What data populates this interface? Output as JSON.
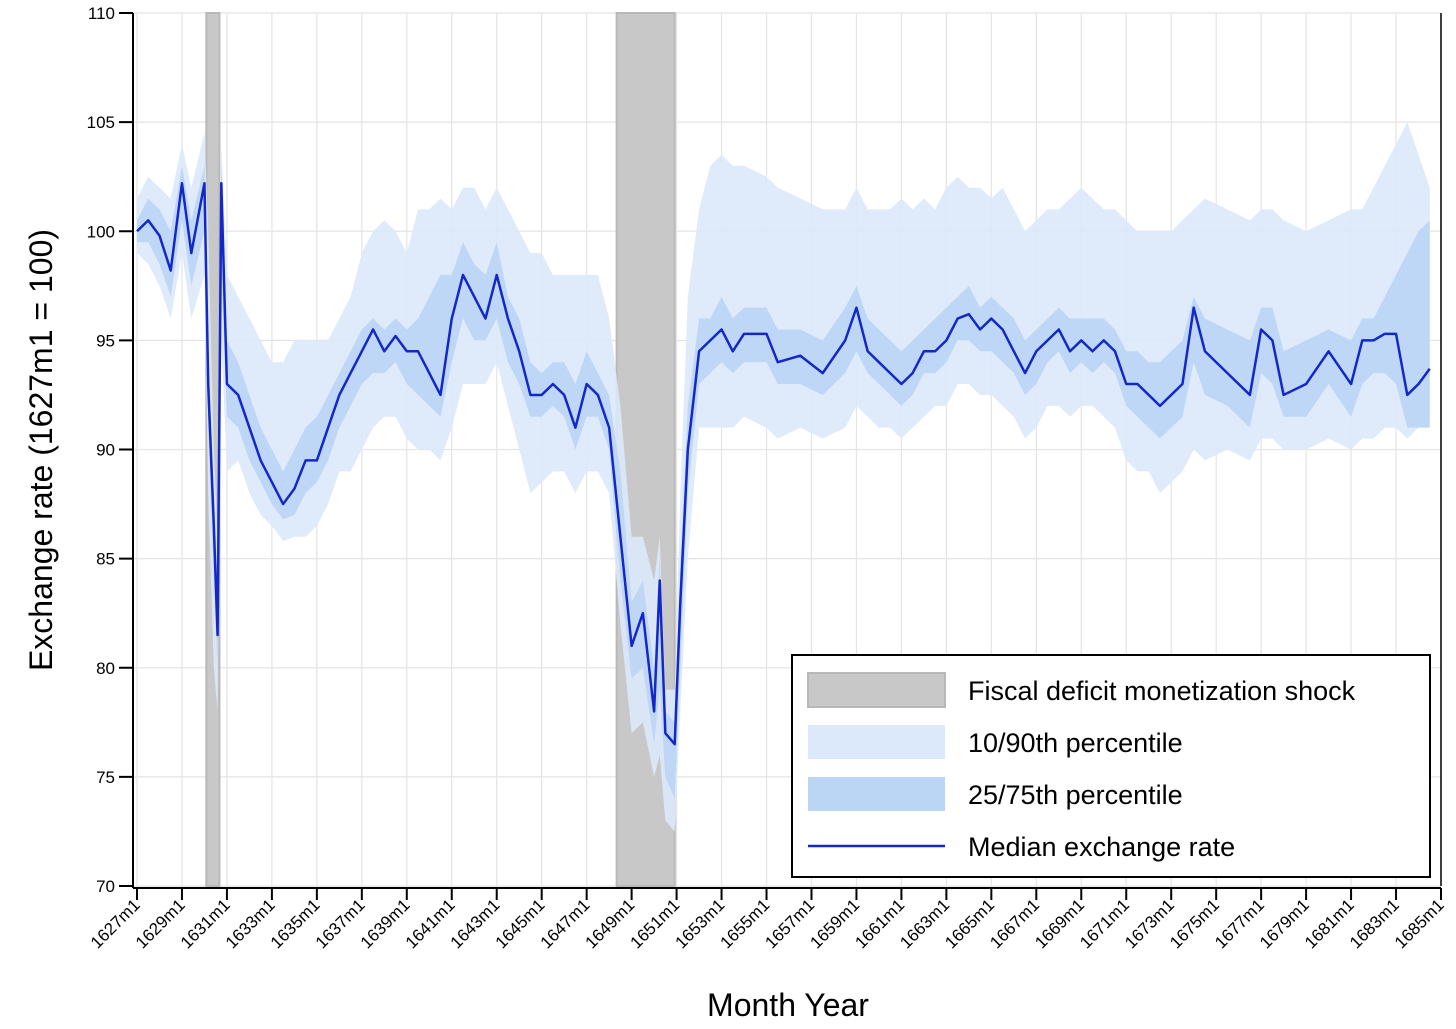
{
  "chart_data": {
    "type": "line",
    "xlabel": "Month Year",
    "ylabel": "Exchange rate (1627m1 = 100)",
    "ylim": [
      70,
      110
    ],
    "yticks": [
      70,
      75,
      80,
      85,
      90,
      95,
      100,
      105,
      110
    ],
    "xticks": [
      "1627m1",
      "1629m1",
      "1631m1",
      "1633m1",
      "1635m1",
      "1637m1",
      "1639m1",
      "1641m1",
      "1643m1",
      "1645m1",
      "1647m1",
      "1649m1",
      "1651m1",
      "1653m1",
      "1655m1",
      "1657m1",
      "1659m1",
      "1661m1",
      "1663m1",
      "1665m1",
      "1667m1",
      "1669m1",
      "1671m1",
      "1673m1",
      "1675m1",
      "1677m1",
      "1679m1",
      "1681m1",
      "1683m1",
      "1685m1"
    ],
    "grid": true,
    "legend": "lower right",
    "shaded_regions": {
      "name": "Fiscal deficit monetization shock",
      "color": "#c8c8c8",
      "ranges": [
        [
          "1630m2",
          "1630m9"
        ],
        [
          "1648m5",
          "1650m12"
        ]
      ]
    },
    "x": [
      "1627m1",
      "1627m7",
      "1628m1",
      "1628m7",
      "1629m1",
      "1629m6",
      "1630m1",
      "1630m3",
      "1630m6",
      "1630m8",
      "1630m10",
      "1631m1",
      "1631m7",
      "1632m1",
      "1632m7",
      "1633m1",
      "1633m7",
      "1634m1",
      "1634m7",
      "1635m1",
      "1635m7",
      "1636m1",
      "1636m7",
      "1637m1",
      "1637m7",
      "1638m1",
      "1638m7",
      "1639m1",
      "1639m7",
      "1640m1",
      "1640m7",
      "1641m1",
      "1641m7",
      "1642m1",
      "1642m7",
      "1643m1",
      "1643m7",
      "1644m1",
      "1644m7",
      "1645m1",
      "1645m7",
      "1646m1",
      "1646m7",
      "1647m1",
      "1647m7",
      "1648m1",
      "1648m7",
      "1649m1",
      "1649m7",
      "1650m1",
      "1650m4",
      "1650m7",
      "1650m12",
      "1651m3",
      "1651m7",
      "1652m1",
      "1652m7",
      "1653m1",
      "1653m7",
      "1654m1",
      "1655m1",
      "1655m7",
      "1656m7",
      "1657m7",
      "1658m7",
      "1659m1",
      "1659m7",
      "1660m1",
      "1660m7",
      "1661m1",
      "1661m7",
      "1662m1",
      "1662m7",
      "1663m1",
      "1663m7",
      "1664m1",
      "1664m7",
      "1665m1",
      "1665m7",
      "1666m1",
      "1666m7",
      "1667m1",
      "1667m7",
      "1668m1",
      "1668m7",
      "1669m1",
      "1669m7",
      "1670m1",
      "1670m7",
      "1671m1",
      "1671m7",
      "1672m1",
      "1672m7",
      "1673m1",
      "1673m7",
      "1674m1",
      "1674m7",
      "1675m7",
      "1676m7",
      "1677m1",
      "1677m7",
      "1678m1",
      "1679m1",
      "1680m1",
      "1681m1",
      "1681m7",
      "1682m1",
      "1682m7",
      "1683m1",
      "1683m7",
      "1684m1",
      "1684m7"
    ],
    "bands": [
      {
        "name": "10/90th percentile",
        "color": "#dce9fb",
        "lower": [
          99,
          98.5,
          97.5,
          96,
          99,
          96,
          98,
          88,
          80,
          78,
          95,
          89,
          89.5,
          88,
          87,
          86.5,
          85.8,
          86,
          86,
          86.5,
          87.5,
          89,
          89,
          90,
          91,
          91.5,
          91.5,
          90.5,
          90,
          90,
          89.5,
          91,
          93,
          93,
          93,
          94,
          92,
          90,
          88,
          88.5,
          89,
          89,
          88,
          89,
          89,
          88,
          82,
          77,
          77.5,
          75,
          76,
          73,
          72.5,
          78,
          85,
          91,
          91,
          91,
          91,
          91.5,
          91,
          90.5,
          91,
          90.5,
          91,
          92,
          91.5,
          91,
          91,
          90.5,
          91,
          91.5,
          92,
          92,
          93,
          93,
          92.5,
          92.5,
          92,
          91.5,
          90.5,
          91,
          92,
          92,
          91.5,
          92,
          92,
          91.5,
          91,
          89.5,
          89,
          89,
          88,
          88.5,
          89,
          90,
          89.5,
          90,
          89.5,
          90.5,
          90.5,
          90,
          90,
          90.5,
          90,
          90.5,
          90.5,
          91,
          91,
          90.5,
          91,
          91
        ],
        "upper": [
          101.5,
          102.5,
          102,
          101.5,
          104,
          102,
          104.5,
          100,
          90,
          86,
          104,
          98,
          97,
          96,
          95,
          94,
          94,
          95,
          95,
          95,
          95,
          96,
          97,
          99,
          100,
          100.5,
          100,
          99,
          101,
          101,
          101.5,
          101,
          102,
          102,
          101,
          102,
          101,
          100,
          99,
          99,
          98,
          98,
          98,
          98,
          98,
          96,
          92,
          86,
          86,
          84,
          86,
          79,
          79,
          88,
          97,
          101,
          103,
          103.5,
          103,
          103,
          102.5,
          102,
          101.5,
          101,
          101,
          102,
          101,
          101,
          101,
          101.5,
          101,
          101.5,
          101,
          102,
          102.5,
          102,
          102,
          101.5,
          102,
          101,
          100,
          100.5,
          101,
          101,
          101.5,
          102,
          101.5,
          101,
          101,
          100.5,
          100,
          100,
          100,
          100,
          100.5,
          101,
          101.5,
          101,
          100.5,
          101,
          101,
          100.5,
          100,
          100.5,
          101,
          101,
          102,
          103,
          104,
          105,
          103.5,
          102
        ]
      },
      {
        "name": "25/75th percentile",
        "color": "#bbd5f5",
        "lower": [
          99.5,
          99.5,
          98.5,
          97,
          100.5,
          97.5,
          100,
          91,
          84,
          80,
          98,
          91.5,
          91,
          89.5,
          88.5,
          87.5,
          86.8,
          87,
          88,
          88.5,
          89.5,
          91,
          92,
          93,
          93.5,
          93.5,
          94,
          93,
          92.5,
          92,
          91.5,
          94,
          96,
          95,
          95,
          96,
          94,
          93,
          91.5,
          91.5,
          92,
          91.5,
          90,
          91.5,
          91.5,
          90,
          84,
          79.5,
          80,
          76.5,
          79,
          75,
          74,
          80,
          88,
          93,
          93.5,
          94,
          93.5,
          94,
          94,
          93,
          93,
          92.5,
          93.5,
          94.5,
          93.5,
          93,
          92.5,
          92,
          92.5,
          93.5,
          93.5,
          94,
          95,
          95,
          94.5,
          94.5,
          94,
          93.5,
          92.5,
          93,
          94,
          94.5,
          93.5,
          94,
          93.5,
          94,
          93.5,
          92,
          91.5,
          91,
          90.5,
          91,
          91.5,
          94,
          92.5,
          92,
          91,
          93.5,
          93,
          91.5,
          91.5,
          93,
          91.5,
          93,
          93.5,
          93.5,
          93,
          91,
          91,
          91
        ],
        "upper": [
          100.5,
          101.5,
          101,
          100,
          103,
          100.5,
          103,
          95,
          88,
          84,
          103,
          95,
          94,
          92.5,
          91,
          90,
          89,
          90,
          91,
          91.5,
          92.5,
          93.5,
          94.5,
          95.5,
          96,
          95.5,
          96,
          95.5,
          96,
          97,
          98,
          98,
          99.5,
          98.5,
          98,
          99.5,
          97,
          96,
          94,
          93.5,
          94,
          94,
          93,
          94.5,
          93.5,
          92.5,
          89,
          83,
          84,
          80,
          85,
          78,
          77.5,
          85,
          92,
          96,
          96,
          97,
          96,
          96.5,
          96.5,
          95.5,
          95.5,
          95,
          96.5,
          97.5,
          96,
          95.5,
          95,
          94.5,
          95,
          95.5,
          96,
          96.5,
          97,
          97.5,
          96.5,
          97,
          96.5,
          96,
          95,
          95.5,
          96,
          96.5,
          96,
          96,
          96,
          96,
          95.5,
          94.5,
          94.5,
          94,
          94,
          94.5,
          95,
          97,
          96,
          95.5,
          95,
          96.5,
          96.5,
          94.5,
          95,
          95.5,
          95,
          96,
          96,
          97,
          98,
          99,
          100,
          100.5
        ]
      }
    ],
    "series": [
      {
        "name": "Median exchange rate",
        "color": "#1428c8",
        "values": [
          100,
          100.5,
          99.8,
          98.2,
          102.2,
          99,
          102.2,
          93,
          86.5,
          81.5,
          102.2,
          93,
          92.5,
          91,
          89.5,
          88.5,
          87.5,
          88.2,
          89.5,
          89.5,
          91,
          92.5,
          93.5,
          94.5,
          95.5,
          94.5,
          95.2,
          94.5,
          94.5,
          93.5,
          92.5,
          96,
          98,
          97,
          96,
          98,
          96,
          94.5,
          92.5,
          92.5,
          93,
          92.5,
          91,
          93,
          92.5,
          91,
          86,
          81,
          82.5,
          78,
          84,
          77,
          76.5,
          83,
          90,
          94.5,
          95,
          95.5,
          94.5,
          95.3,
          95.3,
          94,
          94.3,
          93.5,
          95,
          96.5,
          94.5,
          94,
          93.5,
          93,
          93.5,
          94.5,
          94.5,
          95,
          96,
          96.2,
          95.5,
          96,
          95.5,
          94.5,
          93.5,
          94.5,
          95,
          95.5,
          94.5,
          95,
          94.5,
          95,
          94.5,
          93,
          93,
          92.5,
          92,
          92.5,
          93,
          96.5,
          94.5,
          93.5,
          92.5,
          95.5,
          95,
          92.5,
          93,
          94.5,
          93,
          95,
          95,
          95.3,
          95.3,
          92.5,
          93,
          93.7
        ]
      }
    ]
  }
}
